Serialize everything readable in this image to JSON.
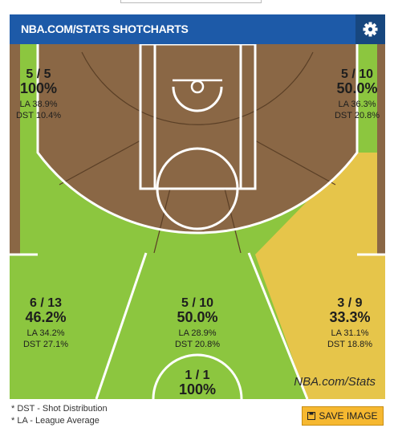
{
  "header": {
    "title": "NBA.COM/STATS SHOTCHARTS"
  },
  "zones": [
    {
      "shots": "5 / 5",
      "pct": "100%",
      "la": "LA 38.9%",
      "dst": "DST 10.4%"
    },
    {
      "shots": "5 / 10",
      "pct": "50.0%",
      "la": "LA 36.3%",
      "dst": "DST 20.8%"
    },
    {
      "shots": "6 / 13",
      "pct": "46.2%",
      "la": "LA 34.2%",
      "dst": "DST 27.1%"
    },
    {
      "shots": "5 / 10",
      "pct": "50.0%",
      "la": "LA 28.9%",
      "dst": "DST 20.8%"
    },
    {
      "shots": "3 / 9",
      "pct": "33.3%",
      "la": "LA 31.1%",
      "dst": "DST 18.8%"
    },
    {
      "shots": "1 / 1",
      "pct": "100%"
    }
  ],
  "watermark": "NBA.com/Stats",
  "notes": [
    "* DST - Shot Distribution",
    "* LA - League Average"
  ],
  "button": "SAVE IMAGE"
}
